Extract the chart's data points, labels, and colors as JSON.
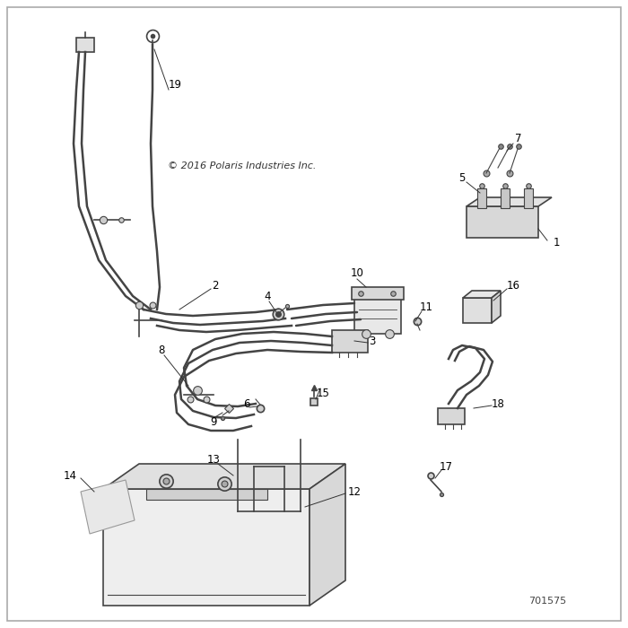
{
  "bg_color": "#ffffff",
  "border_color": "#aaaaaa",
  "line_color": "#444444",
  "copyright_text": "© 2016 Polaris Industries Inc.",
  "part_number": "701575",
  "label_fontsize": 8.5,
  "copyright_fontsize": 8,
  "partnumber_fontsize": 8
}
